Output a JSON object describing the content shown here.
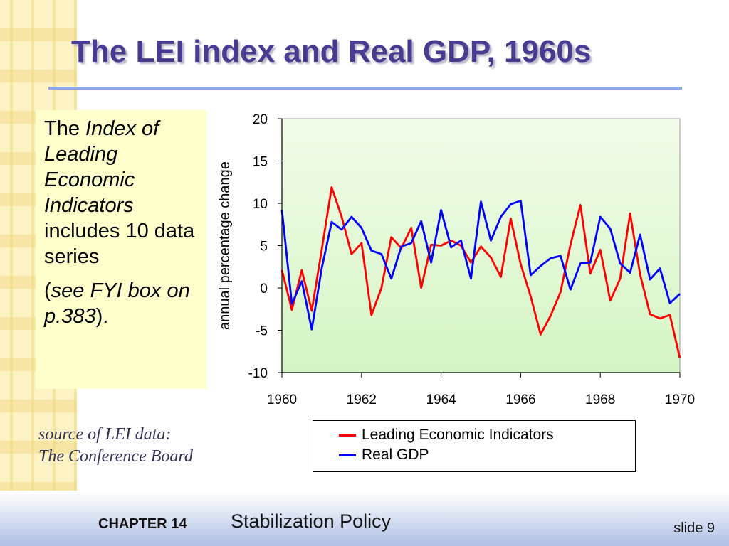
{
  "slide": {
    "title": "The LEI index and Real GDP, 1960s",
    "body": {
      "p1_prefix": "The ",
      "p1_italic": "Index of Leading Economic Indicators",
      "p1_suffix": " includes 10 data series",
      "p2_open": "(",
      "p2_italic": "see FYI box on p.383",
      "p2_close": ")."
    },
    "source_line1": "source of LEI data:",
    "source_line2": "The Conference Board",
    "footer": {
      "chapter": "CHAPTER 14",
      "chapter_title": "Stabilization Policy",
      "slide_number": "slide 9"
    }
  },
  "colors": {
    "title": "#4a3a91",
    "plot_bg": "#eaf9e0",
    "lei": "#ff0000",
    "gdp": "#0000ff"
  },
  "chart_data": {
    "type": "line",
    "title": "",
    "xlabel": "",
    "ylabel": "annual percentage change",
    "xlim": [
      1960,
      1970
    ],
    "ylim": [
      -10,
      20
    ],
    "x_ticks": [
      1960,
      1962,
      1964,
      1966,
      1968,
      1970
    ],
    "y_ticks": [
      -10,
      -5,
      0,
      5,
      10,
      15,
      20
    ],
    "legend_position": "below",
    "series": [
      {
        "name": "Leading Economic Indicators",
        "color": "#ff0000",
        "x": [
          1960.0,
          1960.25,
          1960.5,
          1960.75,
          1961.0,
          1961.25,
          1961.5,
          1961.75,
          1962.0,
          1962.25,
          1962.5,
          1962.75,
          1963.0,
          1963.25,
          1963.5,
          1963.75,
          1964.0,
          1964.25,
          1964.5,
          1964.75,
          1965.0,
          1965.25,
          1965.5,
          1965.75,
          1966.0,
          1966.25,
          1966.5,
          1966.75,
          1967.0,
          1967.25,
          1967.5,
          1967.75,
          1968.0,
          1968.25,
          1968.5,
          1968.75,
          1969.0,
          1969.25,
          1969.5,
          1969.75,
          1970.0
        ],
        "y": [
          2.1,
          -2.6,
          2.1,
          -2.7,
          4.5,
          11.9,
          8.4,
          4.0,
          5.3,
          -3.2,
          0.0,
          6.0,
          4.7,
          7.1,
          0.0,
          5.1,
          5.0,
          5.6,
          5.0,
          3.0,
          4.9,
          3.6,
          1.3,
          8.2,
          2.8,
          -1.0,
          -5.5,
          -3.3,
          -0.5,
          5.1,
          9.8,
          1.7,
          4.5,
          -1.5,
          1.1,
          8.8,
          1.6,
          -3.1,
          -3.6,
          -3.2,
          -8.3
        ]
      },
      {
        "name": "Real GDP",
        "color": "#0000ff",
        "x": [
          1960.0,
          1960.25,
          1960.5,
          1960.75,
          1961.0,
          1961.25,
          1961.5,
          1961.75,
          1962.0,
          1962.25,
          1962.5,
          1962.75,
          1963.0,
          1963.25,
          1963.5,
          1963.75,
          1964.0,
          1964.25,
          1964.5,
          1964.75,
          1965.0,
          1965.25,
          1965.5,
          1965.75,
          1966.0,
          1966.25,
          1966.5,
          1966.75,
          1967.0,
          1967.25,
          1967.5,
          1967.75,
          1968.0,
          1968.25,
          1968.5,
          1968.75,
          1969.0,
          1969.25,
          1969.5,
          1969.75,
          1970.0
        ],
        "y": [
          9.2,
          -1.9,
          0.8,
          -4.9,
          2.3,
          7.8,
          6.9,
          8.4,
          7.1,
          4.4,
          4.0,
          1.1,
          4.9,
          5.3,
          7.9,
          3.0,
          9.2,
          4.8,
          5.6,
          1.1,
          10.2,
          5.6,
          8.4,
          9.9,
          10.3,
          1.5,
          2.6,
          3.5,
          3.8,
          -0.2,
          2.9,
          3.0,
          8.4,
          7.0,
          2.9,
          1.8,
          6.3,
          1.0,
          2.3,
          -1.8,
          -0.7
        ]
      }
    ]
  }
}
